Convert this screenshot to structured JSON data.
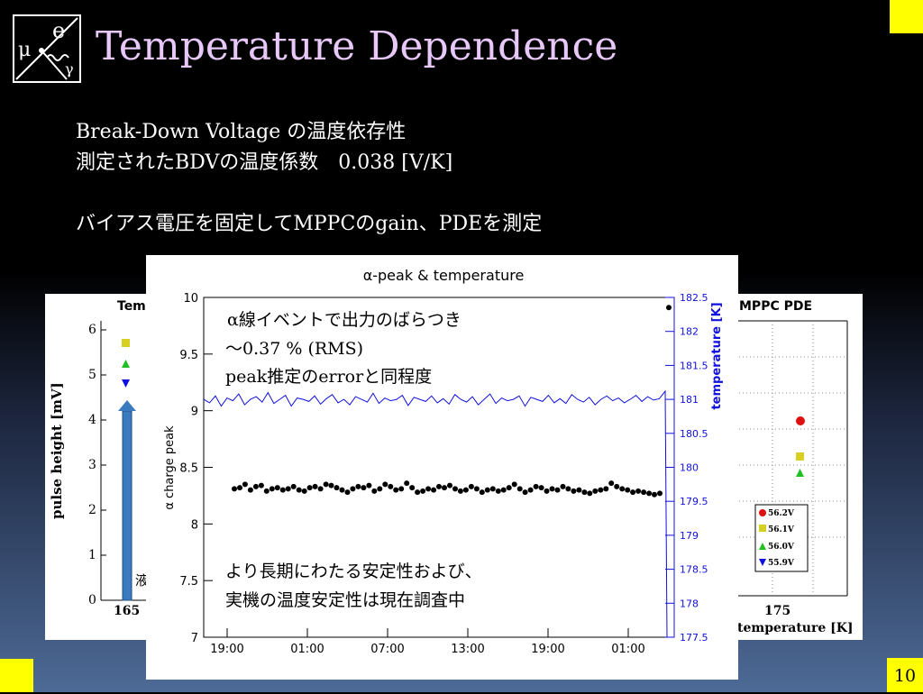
{
  "slide": {
    "title": "Temperature Dependence",
    "lines": [
      "Break-Down Voltage の温度依存性",
      "測定されたBDVの温度係数　0.038 [V/K]",
      "バイアス電圧を固定してMPPCのgain、PDEを測定"
    ],
    "page_number": "10",
    "accent_color": "#ffff00",
    "title_color": "#e8c8f8"
  },
  "logo": {
    "text_e": "e",
    "text_mu": "μ",
    "text_gamma": "γ"
  },
  "left_chart": {
    "title": "Tem",
    "ylabel": "pulse height [mV]",
    "yticks": [
      "0",
      "1",
      "2",
      "3",
      "4",
      "5",
      "6"
    ],
    "xtick": "165",
    "side_char": "液"
  },
  "right_chart": {
    "title": "MPPC PDE",
    "xlabel": "temperature [K]",
    "xtick": "175",
    "legend": [
      {
        "label": "56.2V",
        "color": "#e01010",
        "marker": "circle"
      },
      {
        "label": "56.1V",
        "color": "#d8d020",
        "marker": "square"
      },
      {
        "label": "56.0V",
        "color": "#20c020",
        "marker": "triangle-up"
      },
      {
        "label": "55.9V",
        "color": "#1010e0",
        "marker": "triangle-down"
      }
    ]
  },
  "chart_data": {
    "type": "scatter",
    "title": "α-peak & temperature",
    "ylabel": "α charge peak",
    "y2label": "temperature [K]",
    "ylim": [
      7,
      10
    ],
    "y2lim": [
      177.5,
      182.5
    ],
    "yticks": [
      "7",
      "7.5",
      "8",
      "8.5",
      "9",
      "9.5",
      "10"
    ],
    "y2ticks": [
      "177.5",
      "178",
      "178.5",
      "179",
      "179.5",
      "180",
      "180.5",
      "181",
      "181.5",
      "182",
      "182.5"
    ],
    "xticks": [
      "19:00",
      "01:00",
      "07:00",
      "13:00",
      "19:00",
      "01:00"
    ],
    "series": [
      {
        "values": [
          8.31,
          8.32,
          8.35,
          8.3,
          8.33,
          8.34,
          8.29,
          8.31,
          8.32,
          8.3,
          8.31,
          8.33,
          8.3,
          8.29,
          8.32,
          8.33,
          8.31,
          8.35,
          8.34,
          8.32,
          8.3,
          8.28,
          8.31,
          8.33,
          8.32,
          8.34,
          8.29,
          8.31,
          8.35,
          8.33,
          8.3,
          8.31,
          8.36,
          8.32,
          8.28,
          8.29,
          8.31,
          8.3,
          8.33,
          8.32,
          8.34,
          8.31,
          8.29,
          8.3,
          8.33,
          8.31,
          8.28,
          8.3,
          8.31,
          8.29,
          8.3,
          8.32,
          8.35,
          8.31,
          8.28,
          8.3,
          8.33,
          8.32,
          8.29,
          8.31,
          8.3,
          8.33,
          8.31,
          8.29,
          8.3,
          8.28,
          8.27,
          8.29,
          8.3,
          8.31,
          8.36,
          8.33,
          8.31,
          8.3,
          8.28,
          8.29,
          8.28,
          8.27,
          8.26,
          8.27,
          9.91
        ]
      },
      {
        "name": "temperature",
        "values": [
          181.0,
          180.95,
          181.05,
          180.9,
          181.02,
          180.98,
          181.08,
          180.92,
          181.0,
          181.04,
          180.96,
          181.1,
          180.94,
          181.0,
          181.06,
          180.9,
          181.02,
          181.0,
          180.97,
          181.05,
          180.93,
          181.01,
          181.07,
          180.95,
          181.0,
          180.92,
          181.04,
          181.0,
          180.96,
          181.09,
          180.94,
          181.02,
          180.98,
          181.0,
          181.06,
          180.91,
          181.03,
          181.0,
          180.97,
          181.05,
          180.95,
          181.01,
          180.93,
          181.07,
          181.0,
          180.96,
          181.04,
          180.92,
          181.0,
          181.08,
          180.94,
          181.02,
          180.98,
          181.0,
          181.05,
          180.9,
          181.03,
          181.0,
          180.97,
          181.06,
          180.95,
          181.01,
          180.94,
          181.07,
          181.0,
          180.96,
          181.03,
          180.92,
          181.0,
          181.05,
          180.98,
          181.02,
          180.95,
          181.0,
          181.06,
          180.97,
          181.04,
          180.99,
          181.01,
          181.12,
          177.5
        ]
      }
    ]
  },
  "annotations": {
    "top": [
      "α線イベントで出力のばらつき",
      "〜0.37 % (RMS)",
      "peak推定のerrorと同程度"
    ],
    "bottom": [
      "より長期にわたる安定性および、",
      "実機の温度安定性は現在調査中"
    ]
  }
}
